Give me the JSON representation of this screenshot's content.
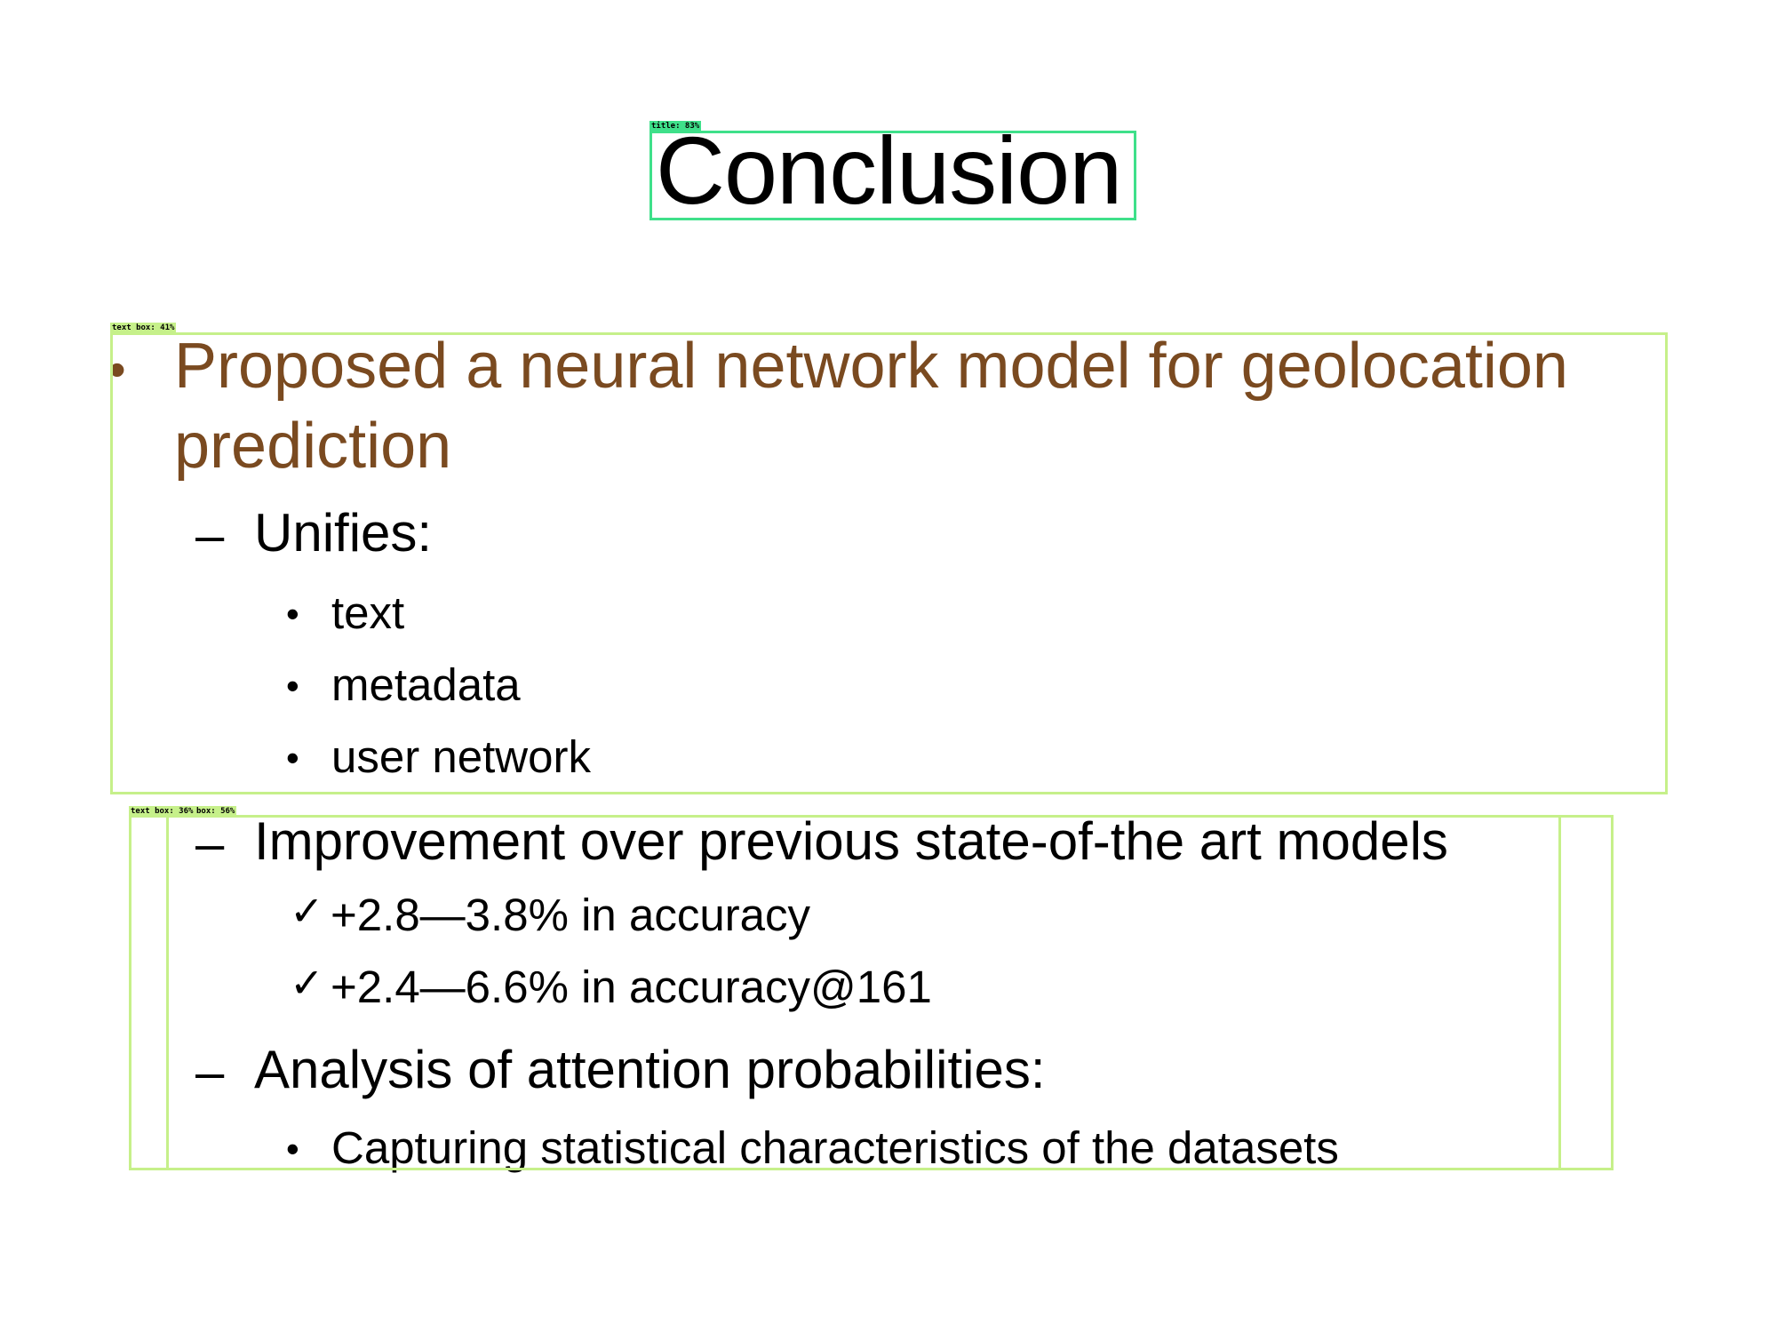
{
  "slide": {
    "title": "Conclusion",
    "main_point": {
      "bullet": "•",
      "line1": "Proposed a neural network model for geolocation",
      "line2": "prediction"
    },
    "unifies": {
      "dash": "–",
      "label": "Unifies:",
      "items": [
        "text",
        "metadata",
        "user network"
      ]
    },
    "improvement": {
      "dash": "–",
      "label": "Improvement over previous state-of-the art models",
      "items": [
        "+2.8—3.8% in accuracy",
        "+2.4—6.6% in accuracy@161"
      ]
    },
    "analysis": {
      "dash": "–",
      "label": "Analysis of attention probabilities:",
      "items": [
        "Capturing statistical characteristics of the datasets"
      ]
    },
    "bullet_glyph": "•",
    "check_glyph": "✓"
  },
  "annotations": {
    "title_label": "title: 83%",
    "textbox1_label": "text box: 41%",
    "textbox2_label": "text box: 36%",
    "textbox3_label": "box: 56%",
    "colors": {
      "title_box": "#3fe08a",
      "text_box": "#c6f08a",
      "heading_text": "#7a4a20"
    }
  }
}
